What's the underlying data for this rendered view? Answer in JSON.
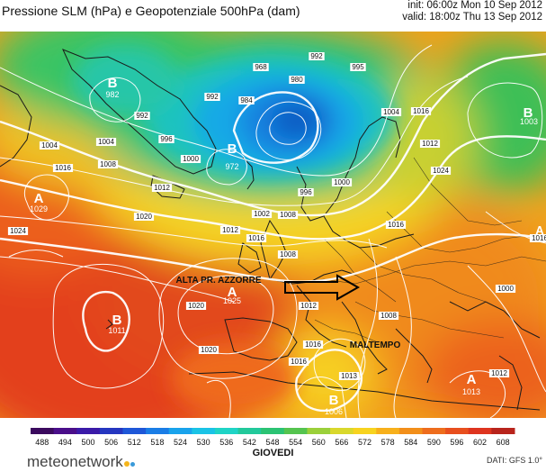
{
  "header": {
    "title": "Pressione SLM (hPa) e Geopotenziale 500hPa (dam)",
    "init": "init: 06:00z Mon 10 Sep 2012",
    "valid": "valid: 18:00z Thu 13 Sep 2012"
  },
  "map": {
    "centers": [
      {
        "letter": "B",
        "value": "982"
      },
      {
        "letter": "B",
        "value": "972"
      },
      {
        "letter": "B",
        "value": "1003"
      },
      {
        "letter": "A",
        "value": "1029"
      },
      {
        "letter": "A",
        "value": "1025"
      },
      {
        "letter": "B",
        "value": "1011"
      },
      {
        "letter": "B",
        "value": "1006"
      },
      {
        "letter": "A",
        "value": "1013"
      },
      {
        "letter": "A",
        "value": "1016"
      }
    ],
    "isobar_labels": [
      "992",
      "980",
      "995",
      "968",
      "992",
      "984",
      "992",
      "996",
      "1000",
      "1004",
      "1004",
      "1008",
      "1016",
      "1012",
      "1000",
      "996",
      "1002",
      "1008",
      "1020",
      "1024",
      "1012",
      "1016",
      "1008",
      "1004",
      "1016",
      "1012",
      "1024",
      "1020",
      "1012",
      "1016",
      "1016",
      "1020",
      "1016",
      "1013",
      "1008",
      "1000",
      "1012",
      "1016"
    ],
    "annotations": {
      "alta": "ALTA PR. AZZORRE",
      "maltempo": "MALTEMPO"
    },
    "colors": {
      "deep_low": "#0a56b0",
      "low": "#15a8e3",
      "teal": "#1ec6a8",
      "green": "#49c45a",
      "yellow": "#f2d020",
      "orange": "#f29219",
      "red_orange": "#ec5a1d",
      "red": "#e23a1c",
      "land_lines": "#1a1a1a",
      "isobar": "#ffffff"
    }
  },
  "scale": {
    "ticks": [
      "488",
      "494",
      "500",
      "506",
      "512",
      "518",
      "524",
      "530",
      "536",
      "542",
      "548",
      "554",
      "560",
      "566",
      "572",
      "578",
      "584",
      "590",
      "596",
      "602",
      "608"
    ],
    "colors": [
      "#3b0a5e",
      "#4a0e8a",
      "#3a1aa8",
      "#2536c0",
      "#1e57d8",
      "#1a7de6",
      "#19a3ec",
      "#1ac3e6",
      "#1fd4c6",
      "#22c99b",
      "#2bc373",
      "#55c44f",
      "#9bd03a",
      "#d9d82c",
      "#f7d31f",
      "#f7b01b",
      "#f28f1a",
      "#ee6d1d",
      "#e84f1e",
      "#de341f",
      "#b8241c"
    ],
    "label": "GIOVEDI"
  },
  "branding": {
    "logo_text": "meteonetwork",
    "credit": "DATI: GFS 1.0°"
  }
}
